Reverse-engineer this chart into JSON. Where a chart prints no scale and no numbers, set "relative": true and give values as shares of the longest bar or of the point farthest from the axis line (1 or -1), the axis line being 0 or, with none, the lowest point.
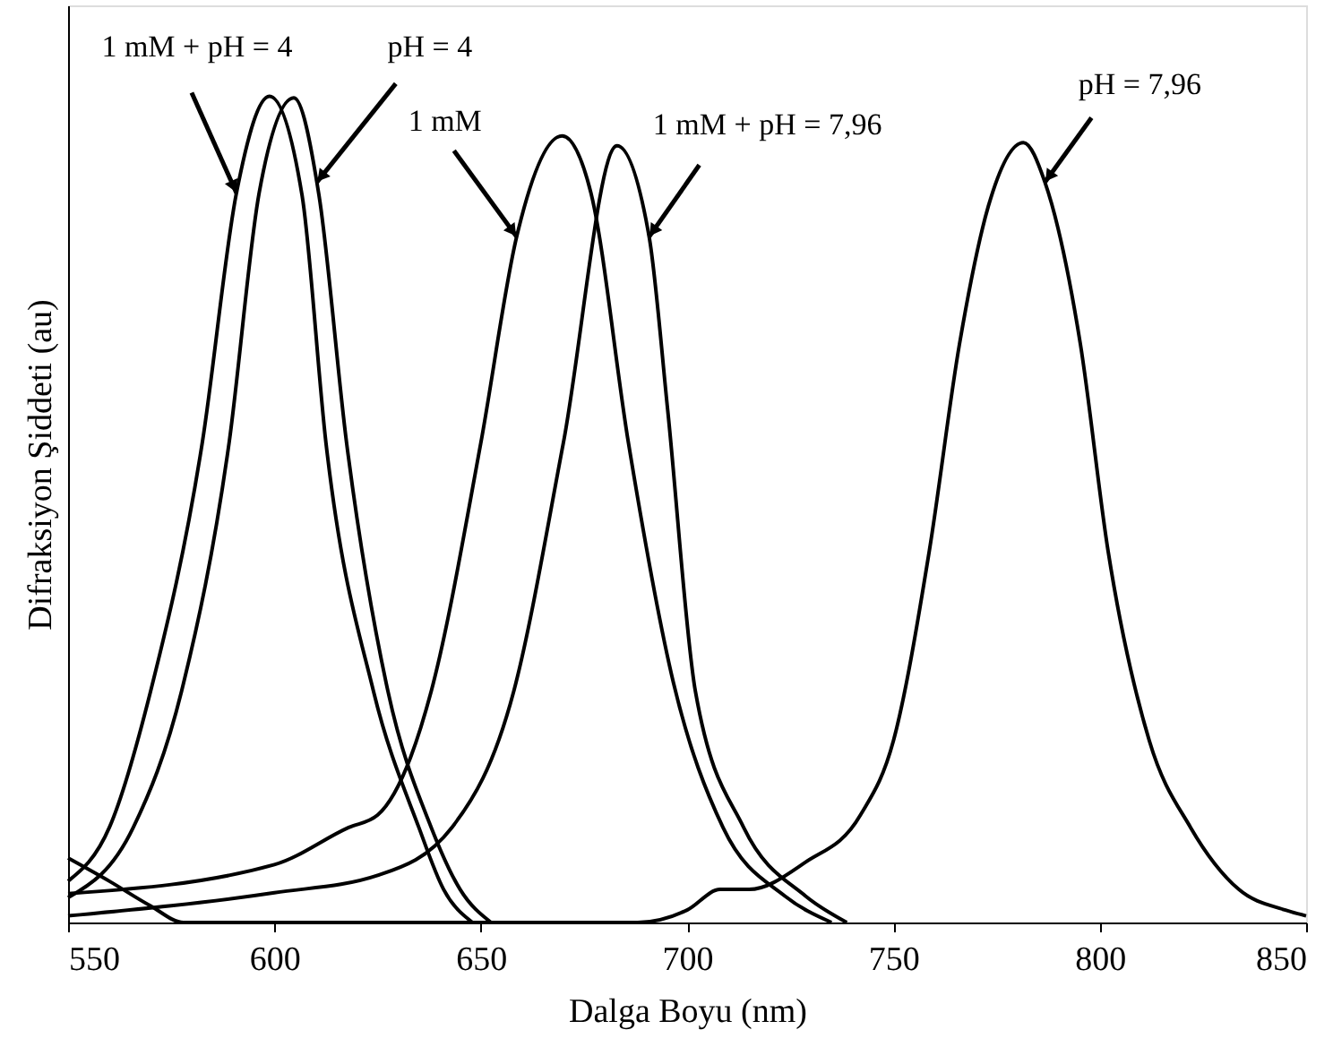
{
  "chart_data": {
    "type": "line",
    "relative": true,
    "xlabel": "Dalga Boyu (nm)",
    "ylabel": "Difraksiyon Şiddeti (au)",
    "xlim": [
      550,
      850
    ],
    "xticks": [
      550,
      600,
      650,
      700,
      750,
      800,
      850
    ],
    "grid": false,
    "line_style": "solid",
    "marker": "none",
    "series": [
      {
        "color": "#000000",
        "x": [
          550,
          560,
          570,
          582.5,
          590.8,
          598.8,
          606.7,
          612.5,
          624,
          635,
          641,
          648
        ],
        "values": [
          0.05,
          0.115,
          0.28,
          0.58,
          0.883,
          1.0,
          0.88,
          0.58,
          0.28,
          0.115,
          0.04,
          0
        ]
      },
      {
        "color": "#000000",
        "x": [
          550,
          565.8,
          577.5,
          589,
          596.3,
          604.7,
          610.8,
          617.5,
          627.5,
          638,
          645,
          652.5
        ],
        "values": [
          0.03,
          0.115,
          0.28,
          0.58,
          0.883,
          0.998,
          0.88,
          0.58,
          0.28,
          0.115,
          0.04,
          0
        ]
      },
      {
        "color": "#000000",
        "x": [
          550,
          600,
          618,
          625,
          633,
          638,
          650,
          658.7,
          669.7,
          676.7,
          685.8,
          696.7,
          708.7,
          723.7,
          735
        ],
        "values": [
          0.035,
          0.07,
          0.115,
          0.13,
          0.2,
          0.28,
          0.58,
          0.83,
          0.952,
          0.883,
          0.58,
          0.29,
          0.115,
          0.032,
          0
        ]
      },
      {
        "color": "#000000",
        "x": [
          550,
          600,
          625,
          643,
          658,
          670,
          683,
          690.8,
          695.3,
          702,
          713.7,
          728.7,
          738.7
        ],
        "values": [
          0.008,
          0.036,
          0.057,
          0.115,
          0.28,
          0.58,
          0.94,
          0.83,
          0.62,
          0.28,
          0.115,
          0.032,
          0
        ]
      },
      {
        "color": "#000000",
        "x": [
          550,
          560,
          570,
          578,
          688,
          700,
          708,
          715,
          728.7,
          742,
          750,
          758.7,
          766,
          773,
          781.5,
          786.7,
          795.3,
          802,
          812,
          822,
          833.7,
          845,
          850
        ],
        "values": [
          0.078,
          0.05,
          0.02,
          0,
          0,
          0.015,
          0.04,
          0.04,
          0.073,
          0.13,
          0.22,
          0.45,
          0.7,
          0.867,
          0.944,
          0.896,
          0.7,
          0.45,
          0.22,
          0.115,
          0.04,
          0.015,
          0.008
        ]
      }
    ],
    "annotations": [
      {
        "text": "1 mM + pH = 4",
        "x": 590.8,
        "y": 0.883
      },
      {
        "text": "pH = 4",
        "x": 610.3,
        "y": 0.896
      },
      {
        "text": "1 mM",
        "x": 658.7,
        "y": 0.83
      },
      {
        "text": "1 mM + pH = 7,96",
        "x": 690.8,
        "y": 0.83
      },
      {
        "text": "pH = 7,96",
        "x": 786.7,
        "y": 0.896
      }
    ]
  }
}
